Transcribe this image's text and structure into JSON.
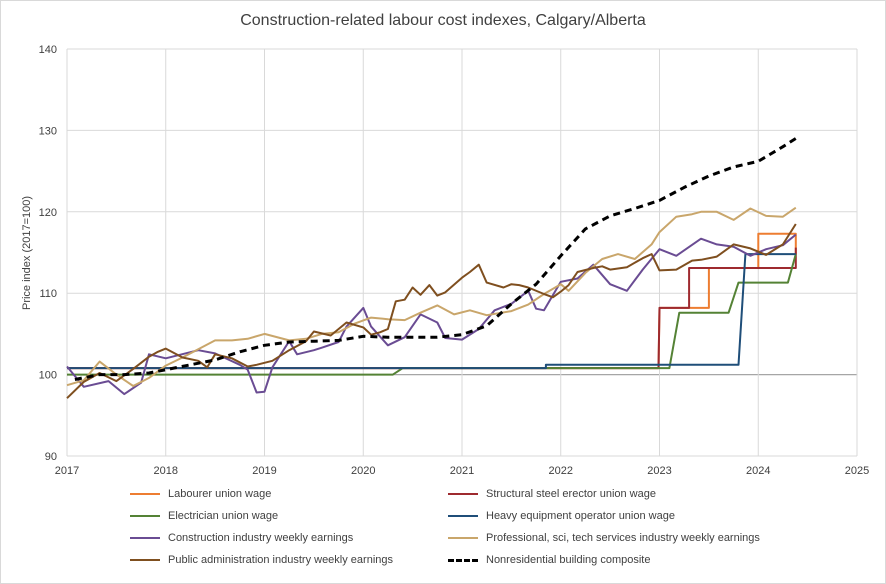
{
  "chart_data": {
    "type": "line",
    "title": "Construction-related labour cost indexes, Calgary/Alberta",
    "ylabel": "Price index (2017=100)",
    "xlabel": "",
    "xlim": [
      2017,
      2025
    ],
    "ylim": [
      90,
      140
    ],
    "xticks": [
      "2017",
      "2018",
      "2019",
      "2020",
      "2021",
      "2022",
      "2023",
      "2024",
      "2025"
    ],
    "yticks": [
      "90",
      "100",
      "110",
      "120",
      "130",
      "140"
    ],
    "grid": true,
    "legend_position": "bottom",
    "series": [
      {
        "name": "Labourer union wage",
        "color": "#ed7d31",
        "dash": false,
        "x": [
          2017.0,
          2022.99,
          2023.0,
          2023.5,
          2023.5,
          2024.0,
          2024.0,
          2024.38,
          2024.38
        ],
        "y": [
          100.8,
          100.8,
          108.2,
          108.2,
          113.1,
          113.1,
          117.3,
          117.3,
          114.8
        ]
      },
      {
        "name": "Structural steel erector union wage",
        "color": "#9e2a2f",
        "dash": false,
        "x": [
          2017.0,
          2022.99,
          2023.0,
          2023.3,
          2023.3,
          2024.3,
          2024.38,
          2024.38
        ],
        "y": [
          100.8,
          100.8,
          108.2,
          108.2,
          113.1,
          113.1,
          113.1,
          115.6
        ]
      },
      {
        "name": "Electrician union wage",
        "color": "#548235",
        "dash": false,
        "x": [
          2017.0,
          2020.3,
          2020.4,
          2023.1,
          2023.2,
          2023.7,
          2023.8,
          2024.3,
          2024.38
        ],
        "y": [
          100.0,
          100.0,
          100.8,
          100.8,
          107.6,
          107.6,
          111.3,
          111.3,
          114.8
        ]
      },
      {
        "name": "Heavy equipment operator union wage",
        "color": "#1f4e79",
        "dash": false,
        "x": [
          2017.0,
          2021.85,
          2021.85,
          2023.8,
          2023.87,
          2024.38
        ],
        "y": [
          100.8,
          100.8,
          101.2,
          101.2,
          114.8,
          114.8
        ]
      },
      {
        "name": "Construction industry weekly earnings",
        "color": "#6a4c93",
        "dash": false,
        "x": [
          2017.0,
          2017.17,
          2017.42,
          2017.58,
          2017.75,
          2017.83,
          2018.0,
          2018.33,
          2018.5,
          2018.75,
          2018.83,
          2018.92,
          2019.0,
          2019.08,
          2019.25,
          2019.33,
          2019.5,
          2019.58,
          2019.75,
          2019.83,
          2020.0,
          2020.08,
          2020.25,
          2020.42,
          2020.58,
          2020.75,
          2020.83,
          2021.0,
          2021.17,
          2021.33,
          2021.5,
          2021.67,
          2021.75,
          2021.83,
          2022.0,
          2022.17,
          2022.33,
          2022.5,
          2022.67,
          2022.83,
          2023.0,
          2023.17,
          2023.42,
          2023.58,
          2023.75,
          2023.92,
          2024.08,
          2024.25,
          2024.38
        ],
        "y": [
          101.0,
          98.5,
          99.2,
          97.6,
          99.0,
          102.5,
          102.0,
          103.0,
          102.6,
          101.2,
          100.6,
          97.8,
          97.9,
          100.9,
          104.1,
          102.5,
          103.0,
          103.3,
          104.0,
          105.9,
          108.2,
          105.9,
          103.6,
          104.6,
          107.4,
          106.4,
          104.5,
          104.3,
          105.6,
          107.9,
          108.7,
          110.3,
          108.1,
          107.9,
          111.4,
          111.8,
          113.5,
          111.1,
          110.3,
          112.9,
          115.4,
          114.6,
          116.7,
          116.0,
          115.7,
          114.6,
          115.4,
          115.9,
          117.2
        ]
      },
      {
        "name": "Professional, sci, tech services industry weekly earnings",
        "color": "#c9a66b",
        "dash": false,
        "x": [
          2017.0,
          2017.17,
          2017.33,
          2017.5,
          2017.67,
          2017.83,
          2018.0,
          2018.17,
          2018.5,
          2018.67,
          2018.83,
          2019.0,
          2019.25,
          2019.42,
          2019.58,
          2019.75,
          2019.92,
          2020.08,
          2020.25,
          2020.42,
          2020.58,
          2020.75,
          2020.92,
          2021.08,
          2021.25,
          2021.5,
          2021.67,
          2021.83,
          2022.0,
          2022.08,
          2022.25,
          2022.42,
          2022.58,
          2022.75,
          2022.92,
          2023.0,
          2023.17,
          2023.33,
          2023.42,
          2023.58,
          2023.75,
          2023.92,
          2024.08,
          2024.25,
          2024.38
        ],
        "y": [
          98.7,
          99.3,
          101.6,
          100.0,
          98.6,
          99.6,
          101.1,
          102.1,
          104.2,
          104.2,
          104.4,
          105.0,
          104.2,
          104.4,
          105.0,
          105.2,
          106.3,
          107.0,
          106.8,
          106.7,
          107.6,
          108.5,
          107.4,
          107.9,
          107.3,
          107.8,
          108.6,
          109.9,
          111.1,
          110.3,
          112.5,
          114.2,
          114.8,
          114.2,
          116.0,
          117.5,
          119.4,
          119.7,
          120.0,
          120.0,
          119.0,
          120.4,
          119.5,
          119.4,
          120.5
        ]
      },
      {
        "name": "Public administration industry weekly earnings",
        "color": "#7f4f1f",
        "dash": false,
        "x": [
          2017.0,
          2017.17,
          2017.33,
          2017.5,
          2017.67,
          2017.83,
          2017.92,
          2018.0,
          2018.17,
          2018.33,
          2018.42,
          2018.5,
          2018.67,
          2018.83,
          2018.92,
          2019.08,
          2019.25,
          2019.42,
          2019.5,
          2019.67,
          2019.83,
          2020.0,
          2020.08,
          2020.17,
          2020.25,
          2020.33,
          2020.42,
          2020.5,
          2020.58,
          2020.67,
          2020.75,
          2020.83,
          2021.0,
          2021.08,
          2021.17,
          2021.25,
          2021.42,
          2021.5,
          2021.58,
          2021.67,
          2021.83,
          2021.92,
          2022.0,
          2022.08,
          2022.17,
          2022.33,
          2022.42,
          2022.5,
          2022.67,
          2022.83,
          2022.92,
          2023.0,
          2023.17,
          2023.33,
          2023.42,
          2023.58,
          2023.75,
          2023.92,
          2024.08,
          2024.25,
          2024.38
        ],
        "y": [
          97.1,
          99.1,
          100.2,
          99.2,
          100.7,
          102.2,
          102.8,
          103.2,
          102.1,
          101.7,
          100.9,
          102.5,
          102.0,
          101.0,
          101.2,
          101.7,
          103.0,
          104.1,
          105.3,
          104.8,
          106.4,
          105.8,
          104.9,
          105.2,
          105.6,
          109.0,
          109.2,
          110.7,
          109.8,
          111.0,
          109.7,
          110.1,
          111.9,
          112.6,
          113.5,
          111.3,
          110.7,
          111.1,
          111.0,
          110.7,
          109.9,
          109.5,
          110.2,
          111.0,
          112.6,
          113.1,
          113.3,
          112.9,
          113.2,
          114.3,
          114.8,
          112.8,
          112.9,
          114.0,
          114.1,
          114.5,
          116.0,
          115.5,
          114.7,
          116.0,
          118.5
        ]
      },
      {
        "name": "Nonresidential building composite",
        "color": "#000000",
        "dash": true,
        "x": [
          2017.08,
          2017.33,
          2017.58,
          2017.83,
          2018.0,
          2018.25,
          2018.5,
          2018.75,
          2019.0,
          2019.25,
          2019.5,
          2019.75,
          2020.0,
          2020.25,
          2020.5,
          2020.75,
          2021.0,
          2021.25,
          2021.5,
          2021.75,
          2022.0,
          2022.25,
          2022.5,
          2022.75,
          2023.0,
          2023.25,
          2023.5,
          2023.75,
          2024.0,
          2024.25,
          2024.38
        ],
        "y": [
          99.4,
          100.0,
          100.0,
          100.2,
          100.6,
          101.2,
          101.8,
          102.8,
          103.6,
          104.0,
          104.1,
          104.2,
          104.7,
          104.6,
          104.6,
          104.6,
          104.9,
          106.0,
          108.7,
          111.1,
          114.6,
          117.9,
          119.5,
          120.4,
          121.4,
          123.0,
          124.4,
          125.5,
          126.2,
          128.0,
          129.0
        ]
      }
    ]
  }
}
